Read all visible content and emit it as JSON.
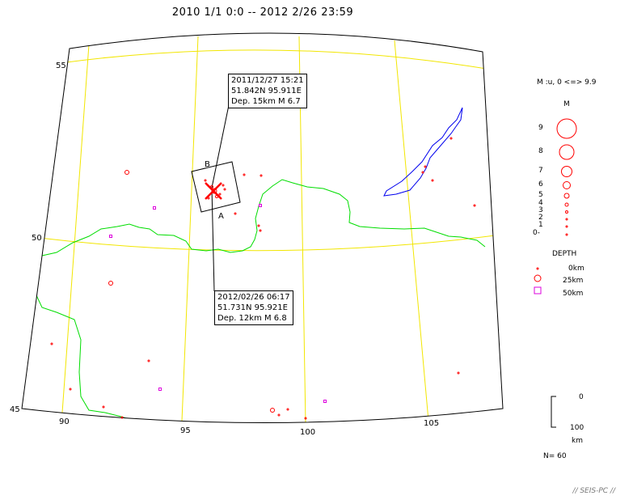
{
  "title": "2010 1/1 0:0 -- 2012 2/26 23:59",
  "map": {
    "lat_labels": [
      "55",
      "50",
      "45"
    ],
    "lon_labels": [
      "90",
      "95",
      "100",
      "105"
    ],
    "line_colors": {
      "grid": "#f2e600",
      "border": "#00dd00",
      "lake": "#0000ee",
      "quake": "#ff0000",
      "deep": "#dd00dd",
      "section": "#000000"
    },
    "section_labels": {
      "a": "A",
      "b": "B"
    }
  },
  "callouts": [
    {
      "datetime": "2011/12/27 15:21",
      "coords": "51.842N  95.911E",
      "depth_mag": "Dep. 15km    M 6.7"
    },
    {
      "datetime": "2012/02/26 06:17",
      "coords": "51.731N  95.921E",
      "depth_mag": "Dep. 12km    M 6.8"
    }
  ],
  "legend": {
    "mag_range": "M :u, 0 <=> 9.9",
    "mag_title": "M",
    "mag_labels": [
      "9",
      "8",
      "7",
      "6",
      "5",
      "4",
      "3",
      "2",
      "1",
      "0-"
    ],
    "depth_title": "DEPTH",
    "depth_labels": [
      "0km",
      "25km",
      "50km"
    ],
    "scale_top": "0",
    "scale_bottom": "100",
    "scale_unit": "km",
    "count": "N= 60"
  },
  "watermark": "// SEIS-PC //"
}
